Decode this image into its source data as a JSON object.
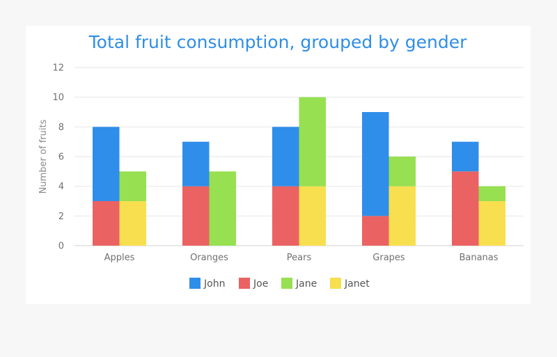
{
  "chart_data": {
    "type": "bar",
    "title": "Total fruit consumption, grouped by gender",
    "xlabel": "",
    "ylabel": "Number of fruits",
    "categories": [
      "Apples",
      "Oranges",
      "Pears",
      "Grapes",
      "Bananas"
    ],
    "ylim": [
      0,
      12
    ],
    "yticks": [
      0,
      2,
      4,
      6,
      8,
      10,
      12
    ],
    "grid": true,
    "legend_position": "bottom",
    "stacks": [
      "male",
      "female"
    ],
    "series": [
      {
        "name": "John",
        "stack": "male",
        "color": "#2f8ee9",
        "values": [
          5,
          3,
          4,
          7,
          2
        ]
      },
      {
        "name": "Joe",
        "stack": "male",
        "color": "#eb6262",
        "values": [
          3,
          4,
          4,
          2,
          5
        ]
      },
      {
        "name": "Jane",
        "stack": "female",
        "color": "#96e052",
        "values": [
          2,
          5,
          6,
          2,
          1
        ]
      },
      {
        "name": "Janet",
        "stack": "female",
        "color": "#f8df4f",
        "values": [
          3,
          0,
          4,
          4,
          3
        ]
      }
    ]
  }
}
